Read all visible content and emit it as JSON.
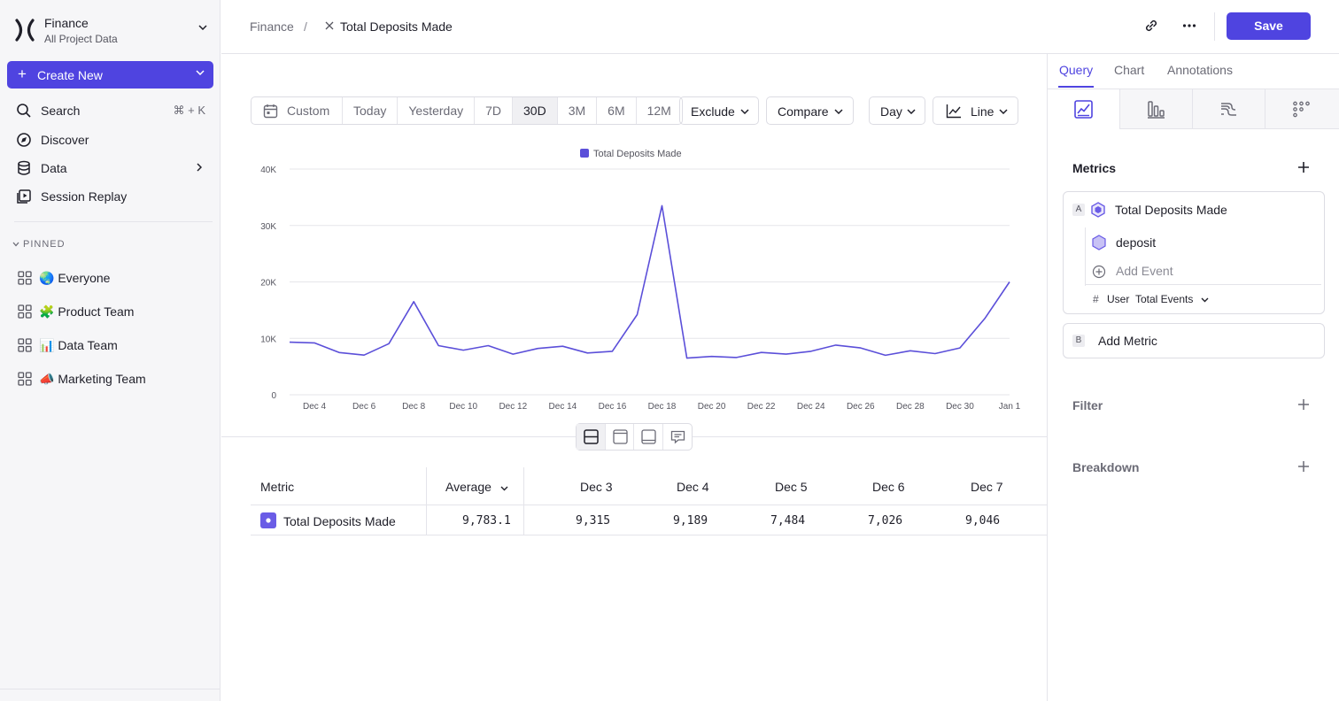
{
  "workspace": {
    "name": "Finance",
    "subtitle": "All Project Data"
  },
  "sidebar": {
    "create_label": "Create New",
    "nav": [
      {
        "label": "Search",
        "shortcut": "⌘ + K",
        "icon": "search-icon"
      },
      {
        "label": "Discover",
        "icon": "compass-icon"
      },
      {
        "label": "Data",
        "icon": "database-icon"
      },
      {
        "label": "Session Replay",
        "icon": "replay-icon"
      }
    ],
    "pinned_heading": "PINNED",
    "pinned": [
      {
        "label": "🌏 Everyone"
      },
      {
        "label": "🧩 Product Team"
      },
      {
        "label": "📊 Data Team"
      },
      {
        "label": "📣 Marketing Team"
      }
    ]
  },
  "header": {
    "breadcrumb_parent": "Finance",
    "breadcrumb_sep": "/",
    "title": "Total Deposits Made",
    "save_label": "Save"
  },
  "toolbar": {
    "ranges": [
      "Custom",
      "Today",
      "Yesterday",
      "7D",
      "30D",
      "3M",
      "6M",
      "12M"
    ],
    "active_range": "30D",
    "exclude_label": "Exclude",
    "compare_label": "Compare",
    "interval_label": "Day",
    "chart_type_label": "Line"
  },
  "chart_data": {
    "type": "line",
    "legend": "Total Deposits Made",
    "series": [
      {
        "name": "Total Deposits Made",
        "color": "#5b4fd9",
        "values": [
          9315,
          9189,
          7484,
          7026,
          9046,
          16500,
          8700,
          7900,
          8700,
          7200,
          8200,
          8600,
          7400,
          7700,
          14200,
          33500,
          6500,
          6800,
          6600,
          7500,
          7200,
          7700,
          8800,
          8300,
          7000,
          7800,
          7300,
          8300,
          13500,
          20000
        ]
      }
    ],
    "x_tick_labels": [
      "Dec 4",
      "Dec 6",
      "Dec 8",
      "Dec 10",
      "Dec 12",
      "Dec 14",
      "Dec 16",
      "Dec 18",
      "Dec 20",
      "Dec 22",
      "Dec 24",
      "Dec 26",
      "Dec 28",
      "Dec 30",
      "Jan 1"
    ],
    "y_ticks": [
      {
        "value": 0,
        "label": "0"
      },
      {
        "value": 10000,
        "label": "10K"
      },
      {
        "value": 20000,
        "label": "20K"
      },
      {
        "value": 30000,
        "label": "30K"
      },
      {
        "value": 40000,
        "label": "40K"
      }
    ],
    "ylim": [
      0,
      40000
    ],
    "grid": true,
    "legend_position": "top-center"
  },
  "table": {
    "metric_header": "Metric",
    "average_header": "Average",
    "date_headers": [
      "Dec 3",
      "Dec 4",
      "Dec 5",
      "Dec 6",
      "Dec 7"
    ],
    "row": {
      "metric": "Total Deposits Made",
      "average": "9,783.1",
      "values": [
        "9,315",
        "9,189",
        "7,484",
        "7,026",
        "9,046"
      ]
    }
  },
  "panel": {
    "tabs": [
      "Query",
      "Chart",
      "Annotations"
    ],
    "active_tab": "Query",
    "metrics_heading": "Metrics",
    "metric_a": {
      "letter": "A",
      "name": "Total Deposits Made",
      "event": "deposit",
      "add_event": "Add Event",
      "agg_symbol": "#",
      "agg_scope": "User",
      "agg_measure": "Total Events"
    },
    "metric_b": {
      "letter": "B",
      "label": "Add Metric"
    },
    "filter_heading": "Filter",
    "breakdown_heading": "Breakdown"
  },
  "colors": {
    "accent": "#4f44e0",
    "series": "#5b4fd9"
  }
}
